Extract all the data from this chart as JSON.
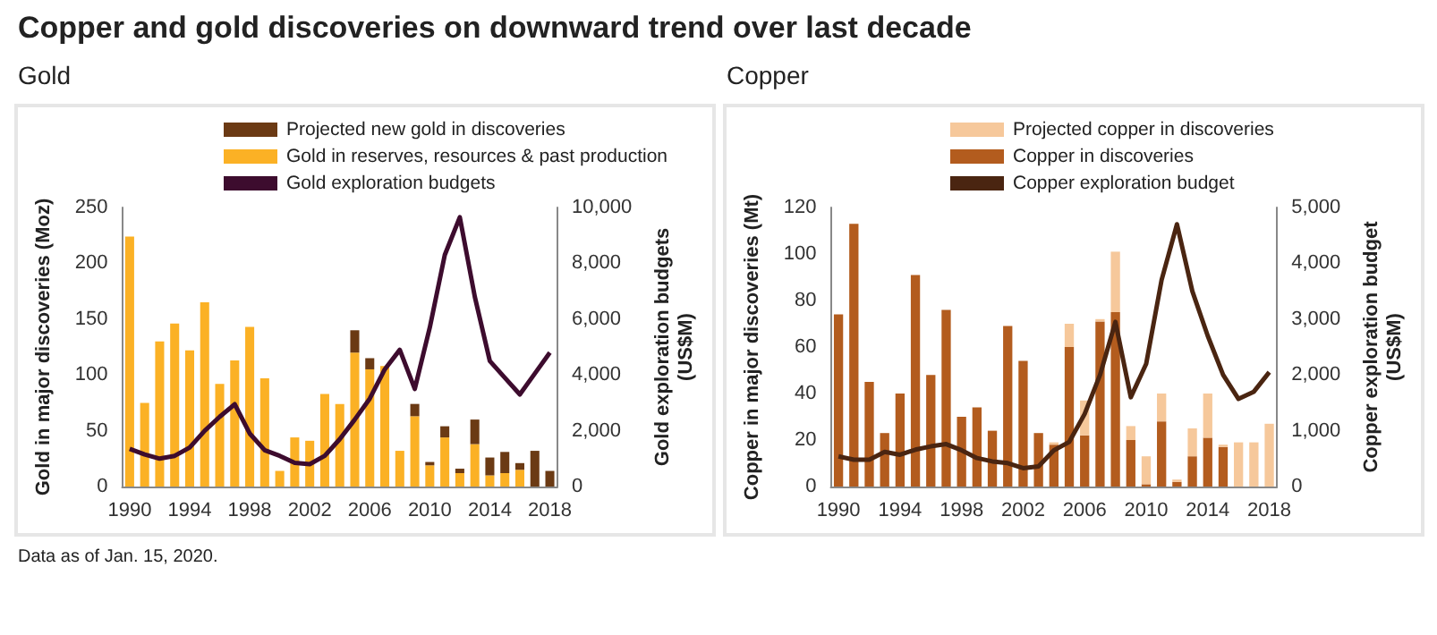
{
  "chart_data": [
    {
      "type": "bar",
      "title": "Copper and gold discoveries on downward trend over last decade",
      "subtitle": "Gold",
      "ylabel": "Gold in major discoveries (Moz)",
      "y2label": "Gold exploration budgets (US$M)",
      "annotations": [
        "Data as of Jan. 15, 2020."
      ],
      "categories": [
        "1990",
        null,
        null,
        null,
        "1994",
        null,
        null,
        null,
        "1998",
        null,
        null,
        null,
        "2002",
        null,
        null,
        null,
        "2006",
        null,
        null,
        null,
        "2010",
        null,
        null,
        null,
        "2014",
        null,
        null,
        null,
        "2018"
      ],
      "stacked": true,
      "legend": "top",
      "grid": false,
      "ylim": [
        0,
        250
      ],
      "yticks": [
        0,
        50,
        100,
        150,
        200,
        250
      ],
      "y2lim": [
        0,
        10000
      ],
      "y2ticks": [
        0,
        {
          "value": 2000,
          "label": "2,000"
        },
        {
          "value": 4000,
          "label": "4,000"
        },
        {
          "value": 6000,
          "label": "6,000"
        },
        {
          "value": 8000,
          "label": "8,000"
        },
        {
          "value": 10000,
          "label": "10,000"
        }
      ],
      "series": [
        {
          "name": "Gold in reserves, resources & past production",
          "color": "#fbb125",
          "values": [
            224,
            75,
            130,
            146,
            122,
            165,
            92,
            113,
            143,
            97,
            14,
            44,
            41,
            83,
            74,
            120,
            105,
            108,
            32,
            63,
            19,
            44,
            12,
            38,
            10,
            12,
            15,
            0,
            0
          ]
        },
        {
          "name": "Projected new gold in discoveries",
          "color": "#6b3a14",
          "values": [
            0,
            0,
            0,
            0,
            0,
            0,
            0,
            0,
            0,
            0,
            0,
            0,
            0,
            0,
            0,
            20,
            10,
            0,
            0,
            11,
            3,
            10,
            4,
            22,
            16,
            19,
            6,
            32,
            14
          ]
        },
        {
          "name": "Gold exploration budgets",
          "type": "line",
          "axis": "y2",
          "color": "#3d0c2e",
          "marker": "none",
          "values": [
            1350,
            1150,
            1000,
            1100,
            1400,
            2000,
            2500,
            2950,
            1900,
            1300,
            1100,
            850,
            800,
            1100,
            1700,
            2400,
            3150,
            4200,
            4900,
            3500,
            5700,
            8300,
            9650,
            6800,
            4500,
            3900,
            3300,
            4050,
            4800
          ]
        }
      ]
    },
    {
      "type": "bar",
      "subtitle": "Copper",
      "ylabel": "Copper in major discoveries (Mt)",
      "y2label": "Copper exploration budget (US$M)",
      "categories": [
        "1990",
        null,
        null,
        null,
        "1994",
        null,
        null,
        null,
        "1998",
        null,
        null,
        null,
        "2002",
        null,
        null,
        null,
        "2006",
        null,
        null,
        null,
        "2010",
        null,
        null,
        null,
        "2014",
        null,
        null,
        null,
        "2018"
      ],
      "stacked": true,
      "legend": "top",
      "grid": false,
      "ylim": [
        0,
        120
      ],
      "yticks": [
        0,
        20,
        40,
        60,
        80,
        100,
        120
      ],
      "y2lim": [
        0,
        5000
      ],
      "y2ticks": [
        0,
        {
          "value": 1000,
          "label": "1,000"
        },
        {
          "value": 2000,
          "label": "2,000"
        },
        {
          "value": 3000,
          "label": "3,000"
        },
        {
          "value": 4000,
          "label": "4,000"
        },
        {
          "value": 5000,
          "label": "5,000"
        }
      ],
      "series": [
        {
          "name": "Copper in discoveries",
          "color": "#b35c1e",
          "values": [
            74,
            113,
            45,
            23,
            40,
            91,
            48,
            76,
            30,
            34,
            24,
            69,
            54,
            23,
            18,
            60,
            22,
            71,
            75,
            20,
            1,
            28,
            2,
            13,
            21,
            17,
            0,
            0,
            0
          ]
        },
        {
          "name": "Projected copper in discoveries",
          "color": "#f6c89b",
          "values": [
            0,
            0,
            0,
            0,
            0,
            0,
            0,
            0,
            0,
            0,
            0,
            0,
            0,
            0,
            1,
            10,
            15,
            1,
            26,
            6,
            12,
            12,
            1,
            12,
            19,
            1,
            19,
            19,
            27
          ]
        },
        {
          "name": "Copper exploration budget",
          "type": "line",
          "axis": "y2",
          "color": "#4a2511",
          "marker": "none",
          "values": [
            540,
            480,
            480,
            620,
            570,
            660,
            720,
            760,
            650,
            510,
            450,
            420,
            330,
            360,
            650,
            800,
            1300,
            2000,
            2950,
            1600,
            2200,
            3700,
            4700,
            3500,
            2700,
            2000,
            1570,
            1700,
            2050
          ]
        }
      ]
    }
  ]
}
